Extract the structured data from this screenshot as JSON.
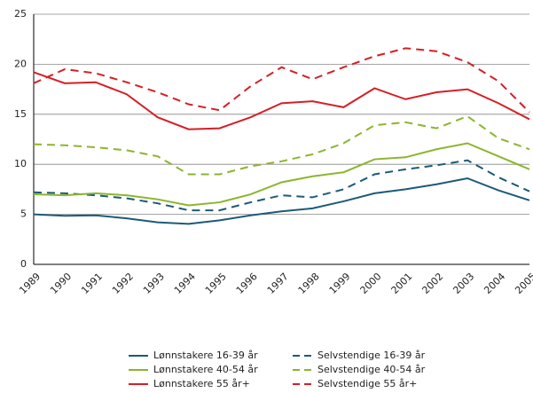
{
  "chart_data": {
    "type": "line",
    "categories": [
      "1989",
      "1990",
      "1991",
      "1992",
      "1993",
      "1994",
      "1995",
      "1996",
      "1997",
      "1998",
      "1999",
      "2000",
      "2001",
      "2002",
      "2003",
      "2004",
      "2005"
    ],
    "ylim": [
      0,
      25
    ],
    "yticks": [
      0,
      5,
      10,
      15,
      20,
      25
    ],
    "grid": true,
    "series": [
      {
        "name": "Lønnstakere 16-39 år",
        "color": "#1d5a78",
        "dashed": false,
        "values": [
          5.0,
          4.85,
          4.9,
          4.6,
          4.2,
          4.05,
          4.4,
          4.9,
          5.3,
          5.6,
          6.3,
          7.1,
          7.5,
          8.0,
          8.6,
          7.4,
          6.4
        ]
      },
      {
        "name": "Selvstendige 16-39 år",
        "color": "#1d5a78",
        "dashed": true,
        "values": [
          7.2,
          7.1,
          6.9,
          6.6,
          6.1,
          5.4,
          5.4,
          6.2,
          6.9,
          6.7,
          7.5,
          9.0,
          9.5,
          9.9,
          10.4,
          8.7,
          7.3
        ]
      },
      {
        "name": "Lønnstakere 40-54 år",
        "color": "#8cb52d",
        "dashed": false,
        "values": [
          7.0,
          6.9,
          7.1,
          6.9,
          6.5,
          5.9,
          6.2,
          7.0,
          8.2,
          8.8,
          9.2,
          10.5,
          10.7,
          11.5,
          12.1,
          10.8,
          9.5
        ]
      },
      {
        "name": "Selvstendige 40-54 år",
        "color": "#8cb52d",
        "dashed": true,
        "values": [
          12.0,
          11.9,
          11.7,
          11.4,
          10.8,
          9.0,
          9.0,
          9.8,
          10.3,
          11.0,
          12.1,
          13.9,
          14.2,
          13.6,
          14.8,
          12.6,
          11.5
        ]
      },
      {
        "name": "Lønnstakere 55 år+",
        "color": "#d51f26",
        "dashed": false,
        "values": [
          19.2,
          18.1,
          18.2,
          17.0,
          14.7,
          13.5,
          13.6,
          14.7,
          16.1,
          16.3,
          15.7,
          17.6,
          16.5,
          17.2,
          17.5,
          16.1,
          14.5
        ]
      },
      {
        "name": "Selvstendige 55 år+",
        "color": "#d51f26",
        "dashed": true,
        "values": [
          18.1,
          19.5,
          19.1,
          18.2,
          17.2,
          16.0,
          15.4,
          17.8,
          19.7,
          18.5,
          19.7,
          20.8,
          21.6,
          21.3,
          20.2,
          18.3,
          15.2
        ]
      }
    ]
  }
}
